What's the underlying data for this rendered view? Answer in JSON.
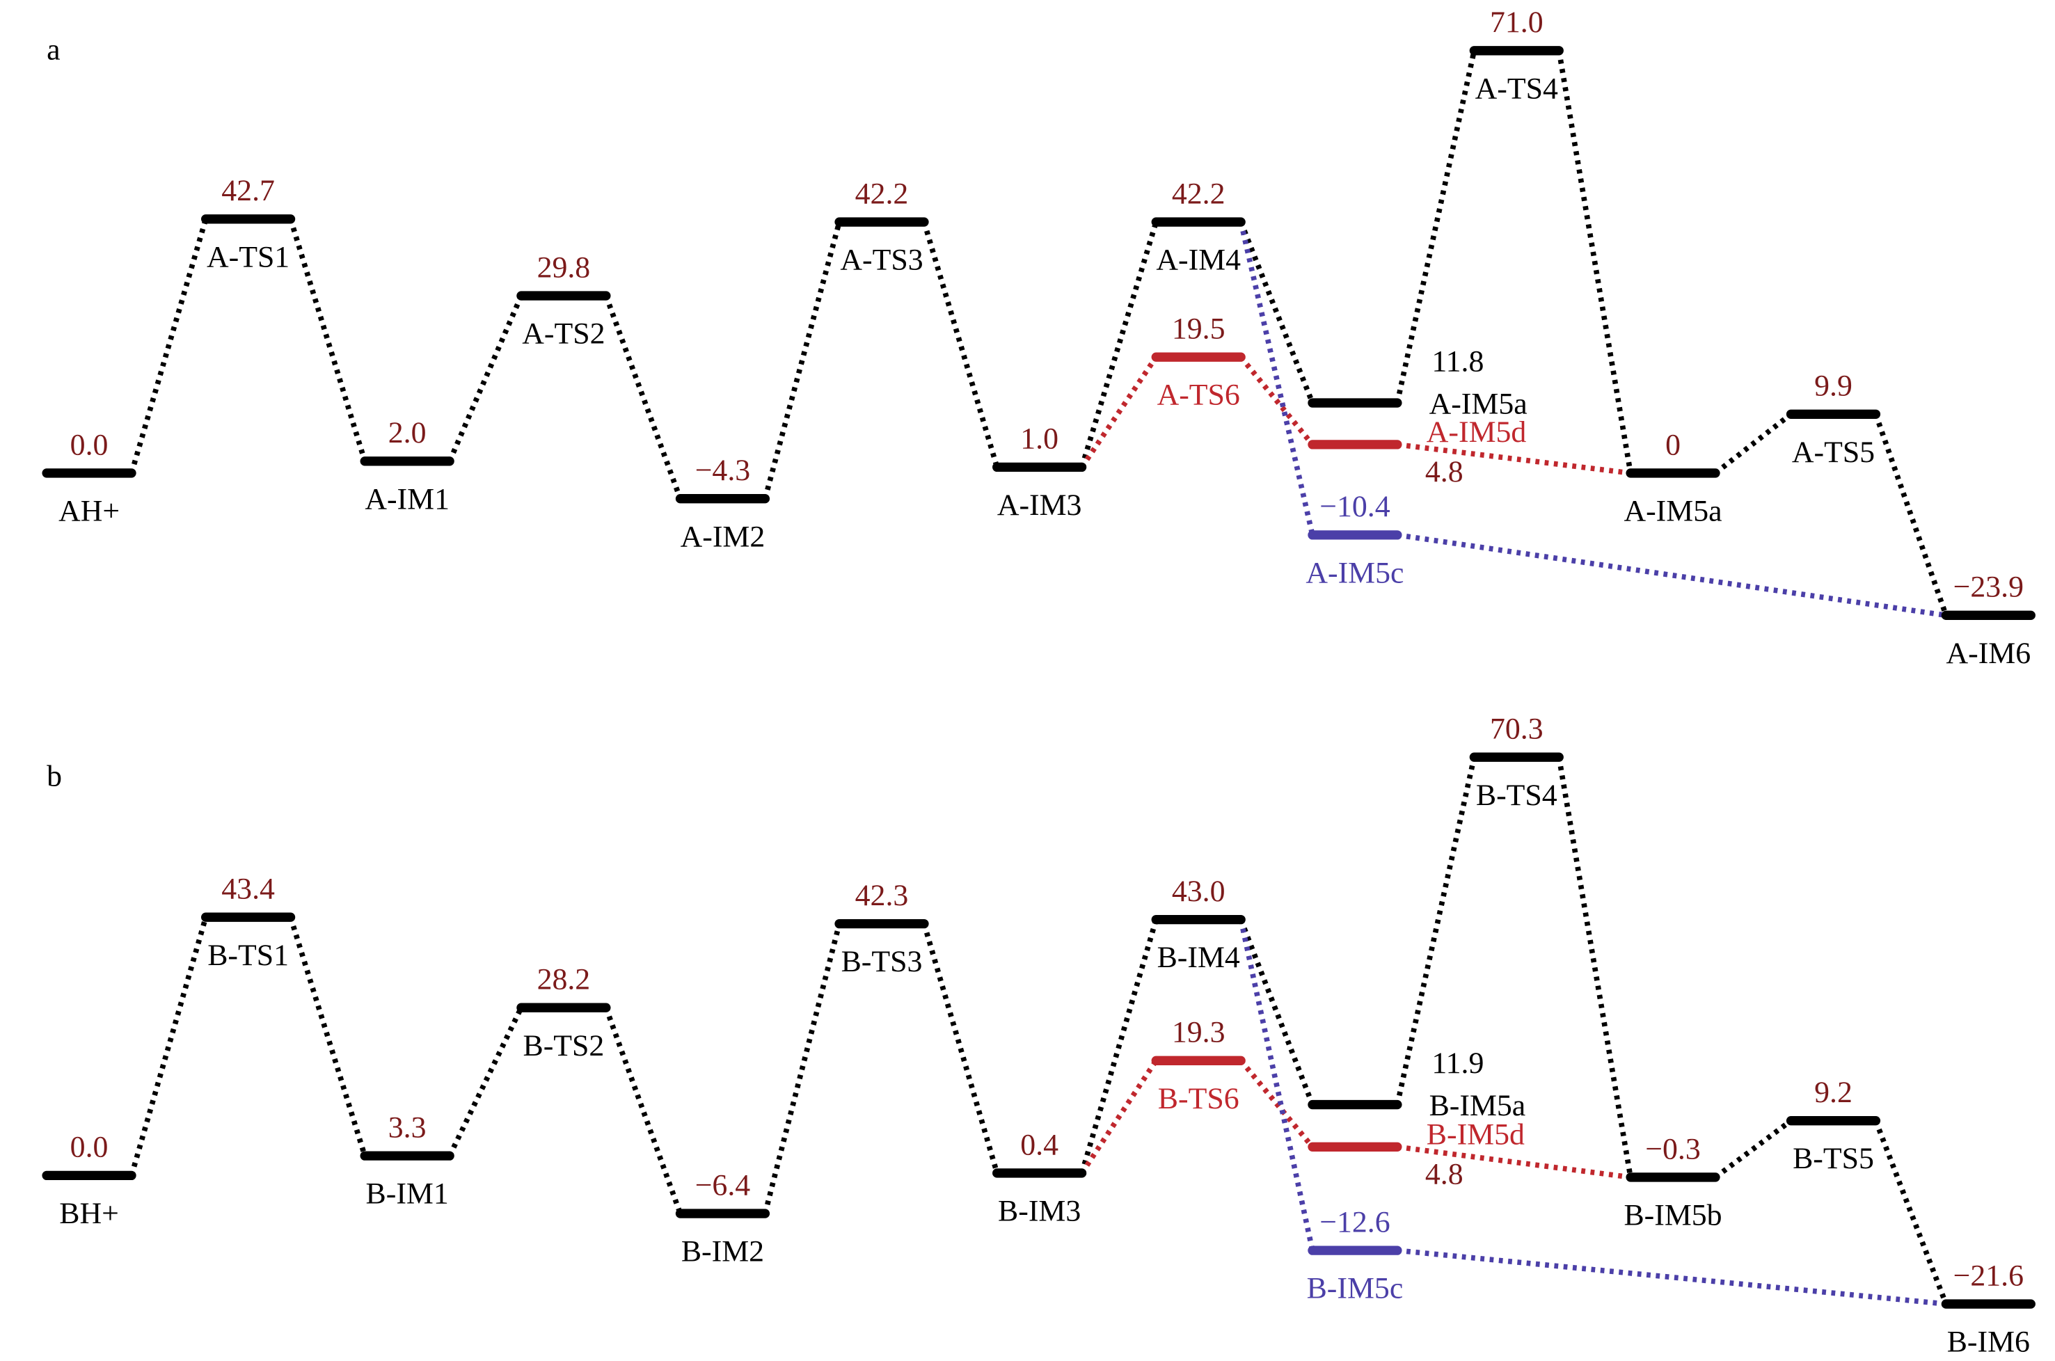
{
  "chart_data": [
    {
      "type": "energy",
      "label": "a",
      "categories": [
        "AH+",
        "A-TS1",
        "A-IM1",
        "A-TS2",
        "A-IM2",
        "A-TS3",
        "A-IM3",
        "A-IM4",
        "A-TS6",
        "A-IM5a",
        "A-IM5d",
        "A-IM5c",
        "A-TS4",
        "A-IM5a",
        "A-TS5",
        "A-IM6"
      ],
      "values": [
        0,
        42.7,
        2,
        29.8,
        -4.3,
        42.2,
        1,
        42.2,
        19.5,
        11.8,
        4.8,
        -10.4,
        71,
        0,
        9.9,
        -23.9
      ],
      "value_labels": [
        "0.0",
        "42.7",
        "2.0",
        "29.8",
        "−4.3",
        "42.2",
        "1.0",
        "42.2",
        "19.5",
        "11.8",
        "4.8",
        "−10.4",
        "71.0",
        "0",
        "9.9",
        "−23.9"
      ],
      "colors": [
        "#000000",
        "#000000",
        "#000000",
        "#000000",
        "#000000",
        "#000000",
        "#000000",
        "#000000",
        "#c0272d",
        "#000000",
        "#c0272d",
        "#4b3fa8",
        "#000000",
        "#000000",
        "#000000",
        "#000000"
      ]
    },
    {
      "type": "energy",
      "label": "b",
      "categories": [
        "BH+",
        "B-TS1",
        "B-IM1",
        "B-TS2",
        "B-IM2",
        "B-TS3",
        "B-IM3",
        "B-IM4",
        "B-TS6",
        "B-IM5a",
        "B-IM5d",
        "B-IM5c",
        "B-TS4",
        "B-IM5b",
        "B-TS5",
        "B-IM6"
      ],
      "values": [
        0,
        43.4,
        3.3,
        28.2,
        -6.4,
        42.3,
        0.4,
        43,
        19.3,
        11.9,
        4.8,
        -12.6,
        70.3,
        -0.3,
        9.2,
        -21.6
      ],
      "value_labels": [
        "0.0",
        "43.4",
        "3.3",
        "28.2",
        "−6.4",
        "42.3",
        "0.4",
        "43.0",
        "19.3",
        "11.9",
        "4.8",
        "−12.6",
        "70.3",
        "−0.3",
        "9.2",
        "−21.6"
      ],
      "colors": [
        "#000000",
        "#000000",
        "#000000",
        "#000000",
        "#000000",
        "#000000",
        "#000000",
        "#000000",
        "#c0272d",
        "#000000",
        "#c0272d",
        "#4b3fa8",
        "#000000",
        "#000000",
        "#000000",
        "#000000"
      ]
    }
  ]
}
